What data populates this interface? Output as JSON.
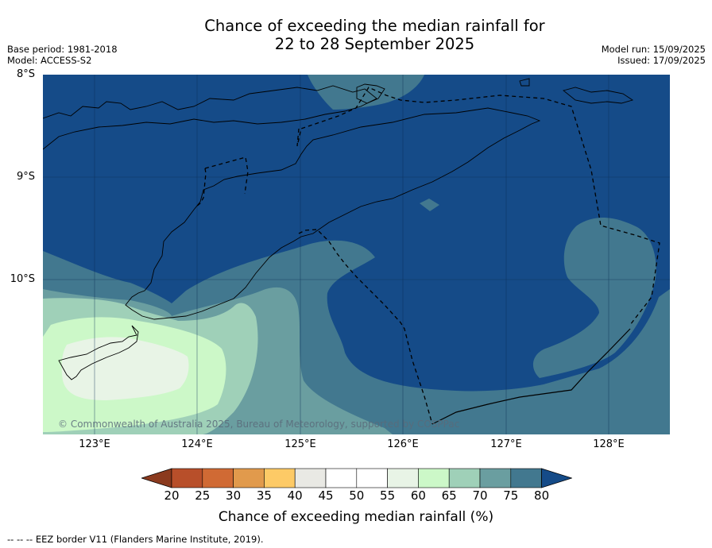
{
  "title": {
    "line1": "Chance of exceeding the median rainfall for",
    "line2": "22 to 28 September 2025"
  },
  "meta_left": {
    "base_period": "Base period: 1981-2018",
    "model": "Model: ACCESS-S2"
  },
  "meta_right": {
    "model_run": "Model run: 15/09/2025",
    "issued": "Issued: 17/09/2025"
  },
  "map": {
    "lat_labels": [
      "8°S",
      "9°S",
      "10°S"
    ],
    "lon_labels": [
      "123°E",
      "124°E",
      "125°E",
      "126°E",
      "127°E",
      "128°E"
    ],
    "copyright": "© Commonwealth of Australia 2025, Bureau of Meteorology, supported by COSPPac",
    "colors": {
      "ocean_80": "#154b88",
      "band_75": "#42788f",
      "band_70": "#6a9ea0",
      "band_65": "#9fd0b8",
      "band_60": "#ccf8c8",
      "band_55": "#e8f4e6",
      "border_line": "#000000"
    }
  },
  "colorbar": {
    "ticks": [
      "20",
      "25",
      "30",
      "35",
      "40",
      "45",
      "50",
      "55",
      "60",
      "65",
      "70",
      "75",
      "80"
    ],
    "colors": [
      "#8b3a1e",
      "#b84f2a",
      "#d06a34",
      "#e19a4c",
      "#fdca66",
      "#e9e9e4",
      "#ffffff",
      "#ffffff",
      "#e8f4e6",
      "#ccf8c8",
      "#9fd0b8",
      "#6a9ea0",
      "#42788f",
      "#154b88"
    ],
    "label": "Chance of exceeding median rainfall (%)"
  },
  "footer": {
    "legend_symbol": "-- -- --",
    "legend_text": "EEZ border V11 (Flanders Marine Institute, 2019)."
  }
}
